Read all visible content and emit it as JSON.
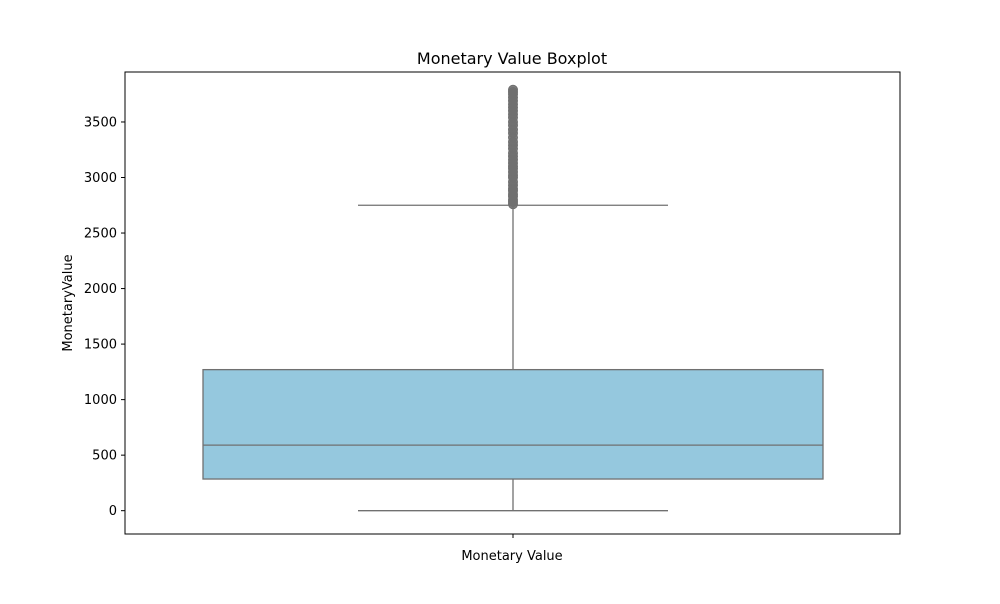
{
  "chart_data": {
    "type": "box",
    "title": "Monetary Value Boxplot",
    "xlabel": "Monetary Value",
    "ylabel": "MonetaryValue",
    "categories": [
      "Monetary Value"
    ],
    "ylim": [
      -210,
      3950
    ],
    "yticks": [
      0,
      500,
      1000,
      1500,
      2000,
      2500,
      3000,
      3500
    ],
    "grid": false,
    "legend": "none",
    "box": {
      "whisker_low": 0,
      "q1": 285,
      "median": 590,
      "q3": 1270,
      "whisker_high": 2750
    },
    "outliers": [
      2760,
      2780,
      2800,
      2830,
      2850,
      2880,
      2900,
      2930,
      2960,
      3000,
      3020,
      3050,
      3080,
      3100,
      3130,
      3160,
      3190,
      3220,
      3260,
      3290,
      3320,
      3360,
      3400,
      3430,
      3470,
      3500,
      3540,
      3570,
      3600,
      3630,
      3660,
      3690,
      3720,
      3750,
      3770,
      3790
    ],
    "colors": {
      "box_fill": "#95c8de",
      "lines": "#707070",
      "outlier": "#707070"
    }
  }
}
